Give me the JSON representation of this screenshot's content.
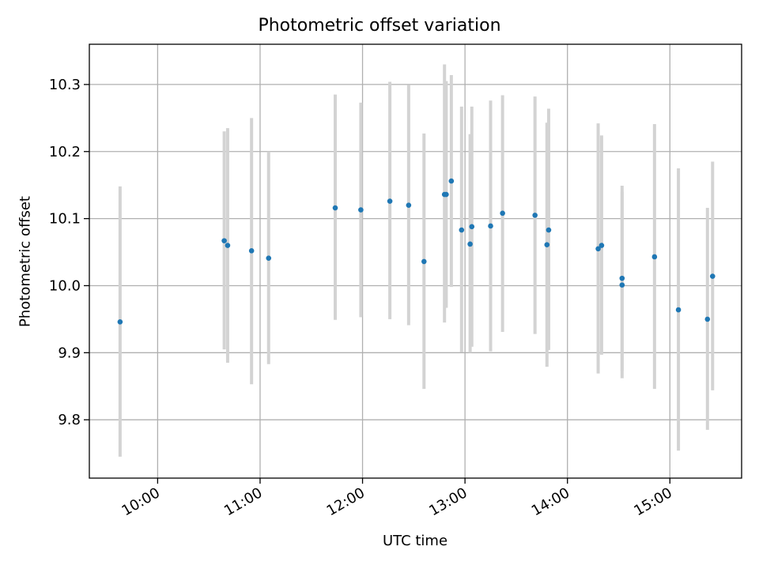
{
  "chart_data": {
    "type": "scatter",
    "title": "Photometric offset variation",
    "xlabel": "UTC time",
    "ylabel": "Photometric offset",
    "x_ticks": [
      "10:00",
      "11:00",
      "12:00",
      "13:00",
      "14:00",
      "15:00"
    ],
    "y_ticks": [
      "9.8",
      "9.9",
      "10.0",
      "10.1",
      "10.2",
      "10.3"
    ],
    "xlim": [
      "09:20",
      "15:42"
    ],
    "ylim": [
      9.713,
      10.36
    ],
    "grid": true,
    "point_color": "#1f77b4",
    "errorbar_color": "#d3d3d3",
    "series": [
      {
        "points": [
          {
            "t": "09:38",
            "y": 9.946,
            "lo": 9.745,
            "hi": 10.148
          },
          {
            "t": "10:39",
            "y": 10.067,
            "lo": 9.905,
            "hi": 10.23
          },
          {
            "t": "10:41",
            "y": 10.06,
            "lo": 9.885,
            "hi": 10.235
          },
          {
            "t": "10:55",
            "y": 10.052,
            "lo": 9.853,
            "hi": 10.25
          },
          {
            "t": "11:05",
            "y": 10.041,
            "lo": 9.883,
            "hi": 10.2
          },
          {
            "t": "11:44",
            "y": 10.116,
            "lo": 9.949,
            "hi": 10.285
          },
          {
            "t": "11:59",
            "y": 10.113,
            "lo": 9.953,
            "hi": 10.273
          },
          {
            "t": "12:16",
            "y": 10.126,
            "lo": 9.95,
            "hi": 10.304
          },
          {
            "t": "12:27",
            "y": 10.12,
            "lo": 9.941,
            "hi": 10.299
          },
          {
            "t": "12:36",
            "y": 10.036,
            "lo": 9.846,
            "hi": 10.227
          },
          {
            "t": "12:48",
            "y": 10.136,
            "lo": 9.945,
            "hi": 10.33
          },
          {
            "t": "12:49",
            "y": 10.136,
            "lo": 9.967,
            "hi": 10.305
          },
          {
            "t": "12:52",
            "y": 10.156,
            "lo": 9.998,
            "hi": 10.314
          },
          {
            "t": "12:58",
            "y": 10.083,
            "lo": 9.901,
            "hi": 10.267
          },
          {
            "t": "13:03",
            "y": 10.062,
            "lo": 9.9,
            "hi": 10.226
          },
          {
            "t": "13:04",
            "y": 10.088,
            "lo": 9.909,
            "hi": 10.267
          },
          {
            "t": "13:15",
            "y": 10.089,
            "lo": 9.902,
            "hi": 10.276
          },
          {
            "t": "13:22",
            "y": 10.108,
            "lo": 9.931,
            "hi": 10.284
          },
          {
            "t": "13:41",
            "y": 10.105,
            "lo": 9.928,
            "hi": 10.282
          },
          {
            "t": "13:48",
            "y": 10.061,
            "lo": 9.879,
            "hi": 10.243
          },
          {
            "t": "13:49",
            "y": 10.083,
            "lo": 9.904,
            "hi": 10.264
          },
          {
            "t": "14:18",
            "y": 10.055,
            "lo": 9.869,
            "hi": 10.242
          },
          {
            "t": "14:20",
            "y": 10.06,
            "lo": 9.897,
            "hi": 10.224
          },
          {
            "t": "14:32",
            "y": 10.011,
            "lo": 9.873,
            "hi": 10.149
          },
          {
            "t": "14:32",
            "y": 10.001,
            "lo": 9.862,
            "hi": 10.14
          },
          {
            "t": "14:51",
            "y": 10.043,
            "lo": 9.846,
            "hi": 10.241
          },
          {
            "t": "15:05",
            "y": 9.964,
            "lo": 9.754,
            "hi": 10.175
          },
          {
            "t": "15:22",
            "y": 9.95,
            "lo": 9.785,
            "hi": 10.116
          },
          {
            "t": "15:25",
            "y": 10.014,
            "lo": 9.844,
            "hi": 10.185
          }
        ]
      }
    ]
  }
}
